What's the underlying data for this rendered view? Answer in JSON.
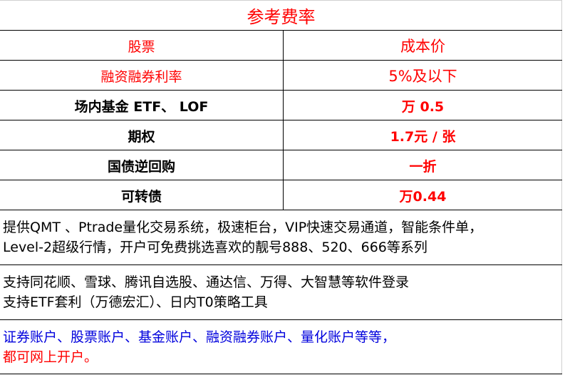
{
  "title": "参考费率",
  "rows": [
    {
      "label": "股票",
      "value": "成本价",
      "label_color": "#ff0000"
    },
    {
      "label": "融资融券利率",
      "value": "5%及以下",
      "label_color": "#ff0000"
    },
    {
      "label": "场内基金 ETF、 LOF",
      "value": "万 0.5",
      "label_color": "#000000"
    },
    {
      "label": "期权",
      "value": "1.7元 / 张",
      "label_color": "#000000"
    },
    {
      "label": "国债逆回购",
      "value": "一折",
      "label_color": "#000000"
    },
    {
      "label": "可转债",
      "value": "万0.44",
      "label_color": "#000000"
    }
  ],
  "notes": [
    {
      "lines": [
        "提供QMT 、Ptrade量化交易系统，极速柜台，VIP快速交易通道，智能条件单，",
        "Level-2超级行情，开户可免费挑选喜欢的靓号888、520、666等系列"
      ]
    },
    {
      "lines": [
        "支持同花顺、雪球、腾讯自选股、通达信、万得、大智慧等软件登录",
        "支持ETF套利（万德宏汇）、日内T0策略工具"
      ]
    },
    {
      "lines": [
        "证券账户、股票账户、基金账户、融资融券账户、量化账户等等，",
        "都可网上开户。"
      ]
    }
  ],
  "colors": {
    "accent_red": "#ff0000",
    "accent_blue": "#0000dd"
  }
}
